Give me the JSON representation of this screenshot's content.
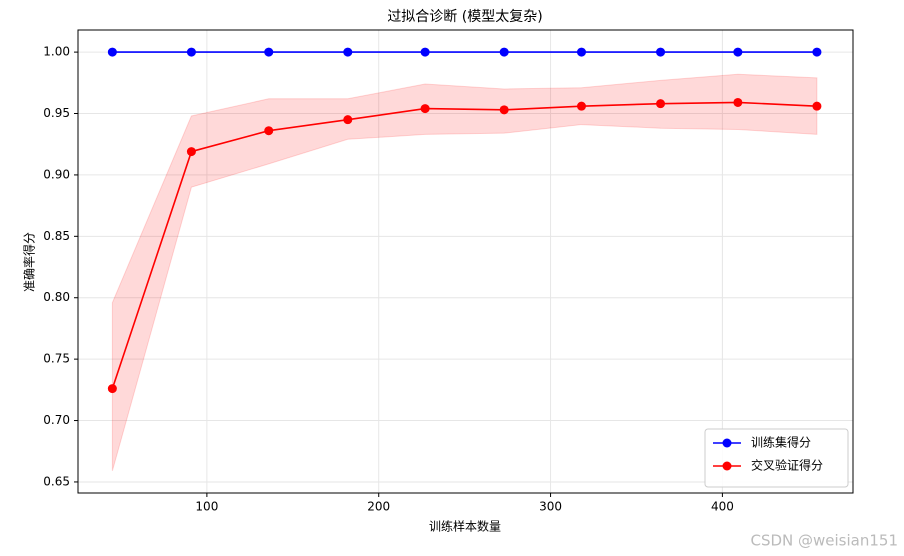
{
  "chart_data": {
    "type": "line",
    "title": "过拟合诊断 (模型太复杂)",
    "x_label": "训练样本数量",
    "y_label": "准确率得分",
    "x": [
      45,
      91,
      136,
      182,
      227,
      273,
      318,
      364,
      409,
      455
    ],
    "series": [
      {
        "name": "训练集得分",
        "color": "#0000ff",
        "values": [
          1.0,
          1.0,
          1.0,
          1.0,
          1.0,
          1.0,
          1.0,
          1.0,
          1.0,
          1.0
        ]
      },
      {
        "name": "交叉验证得分",
        "color": "#ff0000",
        "values": [
          0.726,
          0.919,
          0.936,
          0.945,
          0.954,
          0.953,
          0.956,
          0.958,
          0.959,
          0.956
        ],
        "band_lower": [
          0.659,
          0.89,
          0.909,
          0.929,
          0.933,
          0.934,
          0.941,
          0.938,
          0.937,
          0.933
        ],
        "band_upper": [
          0.796,
          0.948,
          0.962,
          0.962,
          0.974,
          0.97,
          0.971,
          0.977,
          0.982,
          0.979
        ]
      }
    ],
    "xlim": [
      25,
      476
    ],
    "ylim": [
      0.641,
      1.018
    ],
    "xticks": [
      100,
      200,
      300,
      400
    ],
    "yticks": [
      {
        "value": 0.65,
        "label": "0.65"
      },
      {
        "value": 0.7,
        "label": "0.70"
      },
      {
        "value": 0.75,
        "label": "0.75"
      },
      {
        "value": 0.8,
        "label": "0.80"
      },
      {
        "value": 0.85,
        "label": "0.85"
      },
      {
        "value": 0.9,
        "label": "0.90"
      },
      {
        "value": 0.95,
        "label": "0.95"
      },
      {
        "value": 1.0,
        "label": "1.00"
      }
    ],
    "grid": true,
    "legend": "lower right",
    "watermark": "CSDN @weisian151"
  }
}
